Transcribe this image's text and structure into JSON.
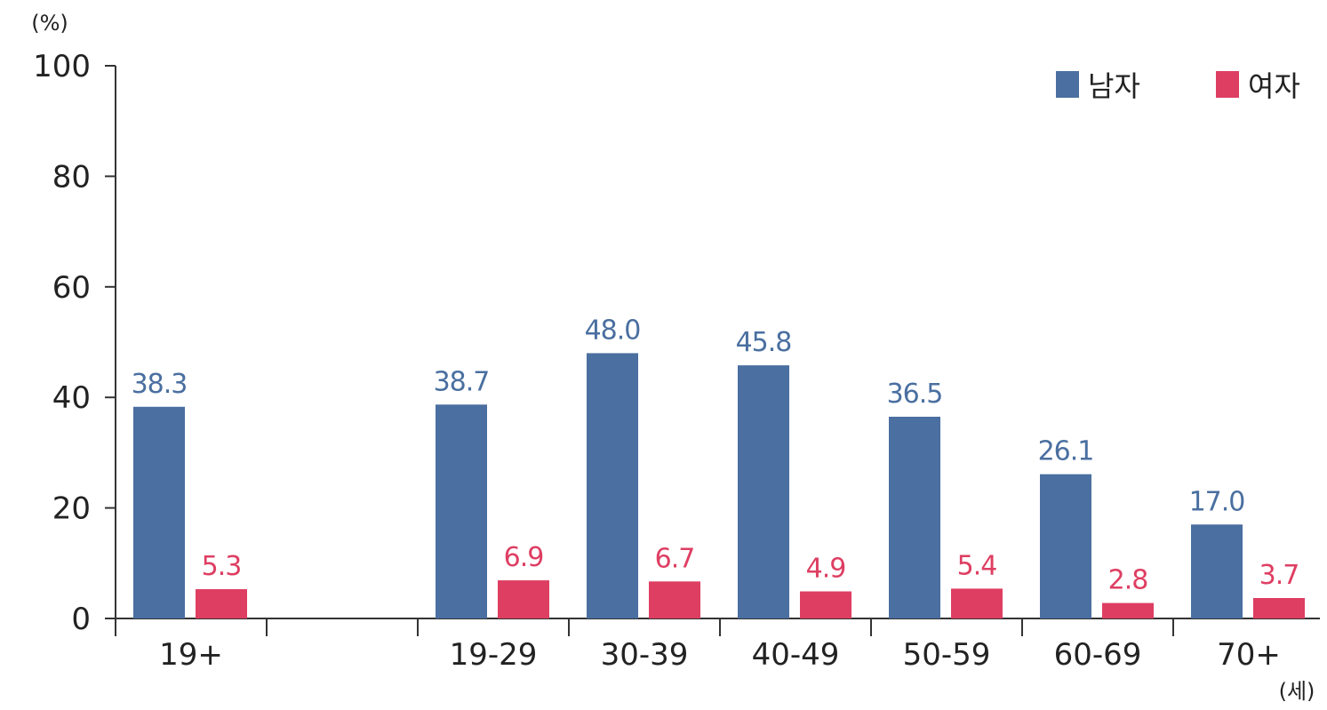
{
  "chart_data": {
    "type": "bar",
    "y_unit": "(%)",
    "x_unit": "(세)",
    "ylim": [
      0,
      100
    ],
    "yticks": [
      "0",
      "20",
      "40",
      "60",
      "80",
      "100"
    ],
    "categories": [
      "19+",
      "",
      "19-29",
      "30-39",
      "40-49",
      "50-59",
      "60-69",
      "70+"
    ],
    "series": [
      {
        "name": "남자",
        "color": "#4a6fa0",
        "values": [
          38.3,
          null,
          38.7,
          48.0,
          45.8,
          36.5,
          26.1,
          17.0
        ],
        "labels": [
          "38.3",
          "",
          "38.7",
          "48.0",
          "45.8",
          "36.5",
          "26.1",
          "17.0"
        ]
      },
      {
        "name": "여자",
        "color": "#de3e62",
        "values": [
          5.3,
          null,
          6.9,
          6.7,
          4.9,
          5.4,
          2.8,
          3.7
        ],
        "labels": [
          "5.3",
          "",
          "6.9",
          "6.7",
          "4.9",
          "5.4",
          "2.8",
          "3.7"
        ]
      }
    ],
    "legend_position": "top-right",
    "grid": false
  }
}
